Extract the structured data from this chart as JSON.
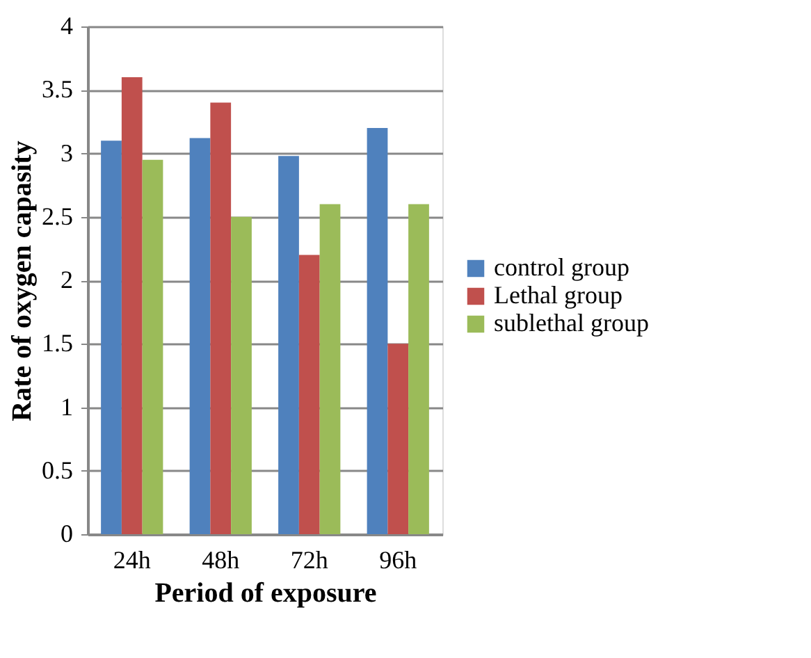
{
  "chart_data": {
    "type": "bar",
    "xlabel": "Period of exposure",
    "ylabel": "Rate of oxygen capasity",
    "categories": [
      "24h",
      "48h",
      "72h",
      "96h"
    ],
    "series": [
      {
        "name": "control group",
        "color": "#4f81bd",
        "values": [
          3.1,
          3.12,
          2.98,
          3.2
        ]
      },
      {
        "name": "Lethal group",
        "color": "#c0504d",
        "values": [
          3.6,
          3.4,
          2.2,
          1.5
        ]
      },
      {
        "name": "sublethal group",
        "color": "#9bbb59",
        "values": [
          2.95,
          2.5,
          2.6,
          2.6
        ]
      }
    ],
    "ylim": [
      0,
      4
    ],
    "yticks": [
      0,
      0.5,
      1,
      1.5,
      2,
      2.5,
      3,
      3.5,
      4
    ],
    "grid": "y",
    "legend": "right"
  }
}
